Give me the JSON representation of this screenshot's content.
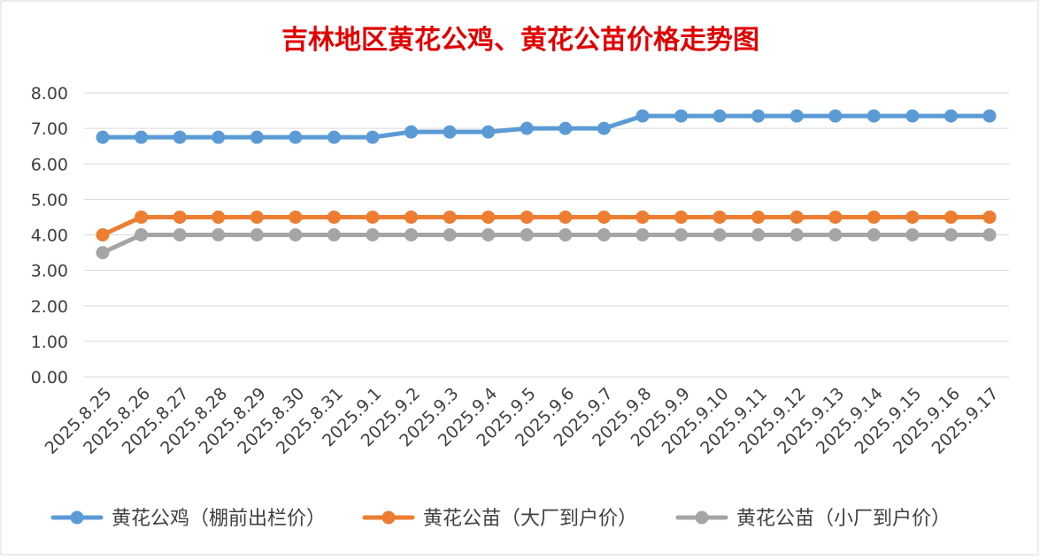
{
  "chart_data": {
    "type": "line",
    "title": "吉林地区黄花公鸡、黄花公苗价格走势图",
    "categories": [
      "2025.8.25",
      "2025.8.26",
      "2025.8.27",
      "2025.8.28",
      "2025.8.29",
      "2025.8.30",
      "2025.8.31",
      "2025.9.1",
      "2025.9.2",
      "2025.9.3",
      "2025.9.4",
      "2025.9.5",
      "2025.9.6",
      "2025.9.7",
      "2025.9.8",
      "2025.9.9",
      "2025.9.10",
      "2025.9.11",
      "2025.9.12",
      "2025.9.13",
      "2025.9.14",
      "2025.9.15",
      "2025.9.16",
      "2025.9.17"
    ],
    "ylim": [
      0,
      8
    ],
    "yticks": [
      "0.00",
      "1.00",
      "2.00",
      "3.00",
      "4.00",
      "5.00",
      "6.00",
      "7.00",
      "8.00"
    ],
    "grid": true,
    "legend": "bottom",
    "series": [
      {
        "name": "黄花公鸡（棚前出栏价）",
        "color": "#5b9bd5",
        "values": [
          6.75,
          6.75,
          6.75,
          6.75,
          6.75,
          6.75,
          6.75,
          6.75,
          6.9,
          6.9,
          6.9,
          7.0,
          7.0,
          7.0,
          7.35,
          7.35,
          7.35,
          7.35,
          7.35,
          7.35,
          7.35,
          7.35,
          7.35,
          7.35
        ]
      },
      {
        "name": "黄花公苗（大厂到户价）",
        "color": "#ed7d31",
        "values": [
          4.0,
          4.5,
          4.5,
          4.5,
          4.5,
          4.5,
          4.5,
          4.5,
          4.5,
          4.5,
          4.5,
          4.5,
          4.5,
          4.5,
          4.5,
          4.5,
          4.5,
          4.5,
          4.5,
          4.5,
          4.5,
          4.5,
          4.5,
          4.5
        ]
      },
      {
        "name": "黄花公苗（小厂到户价）",
        "color": "#a5a5a5",
        "values": [
          3.5,
          4.0,
          4.0,
          4.0,
          4.0,
          4.0,
          4.0,
          4.0,
          4.0,
          4.0,
          4.0,
          4.0,
          4.0,
          4.0,
          4.0,
          4.0,
          4.0,
          4.0,
          4.0,
          4.0,
          4.0,
          4.0,
          4.0,
          4.0
        ]
      }
    ]
  }
}
